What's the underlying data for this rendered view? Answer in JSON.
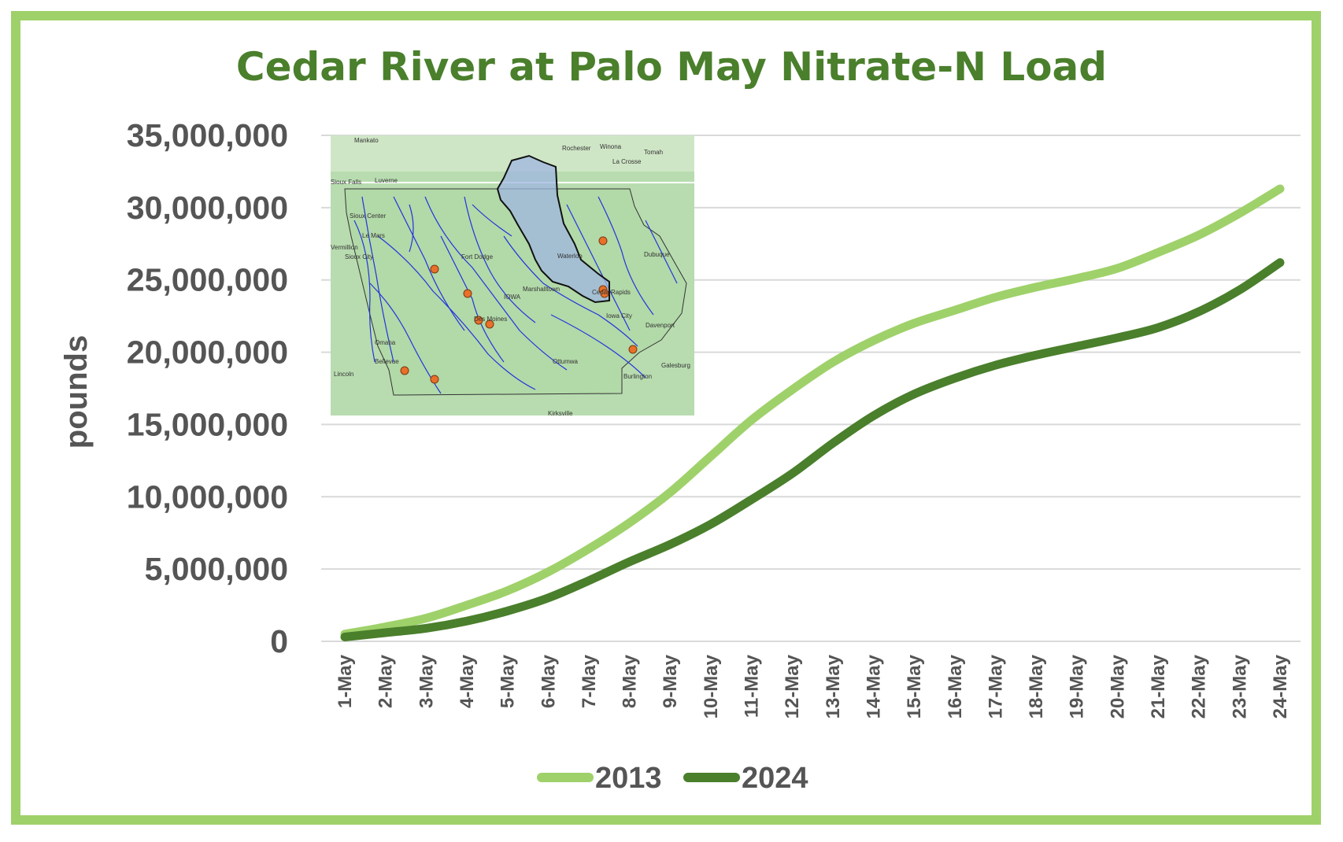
{
  "chart_data": {
    "type": "line",
    "title": "Cedar River at Palo May Nitrate-N Load",
    "xlabel": "",
    "ylabel": "pounds",
    "ylim": [
      0,
      35000000
    ],
    "yticks": [
      0,
      5000000,
      10000000,
      15000000,
      20000000,
      25000000,
      30000000,
      35000000
    ],
    "ytick_labels": [
      "0",
      "5,000,000",
      "10,000,000",
      "15,000,000",
      "20,000,000",
      "25,000,000",
      "30,000,000",
      "35,000,000"
    ],
    "grid": true,
    "legend_position": "bottom",
    "categories": [
      "1-May",
      "2-May",
      "3-May",
      "4-May",
      "5-May",
      "6-May",
      "7-May",
      "8-May",
      "9-May",
      "10-May",
      "11-May",
      "12-May",
      "13-May",
      "14-May",
      "15-May",
      "16-May",
      "17-May",
      "18-May",
      "19-May",
      "20-May",
      "21-May",
      "22-May",
      "23-May",
      "24-May"
    ],
    "series": [
      {
        "name": "2013",
        "color": "#9fd16a",
        "values": [
          500000,
          1000000,
          1600000,
          2500000,
          3500000,
          4800000,
          6400000,
          8200000,
          10300000,
          12800000,
          15300000,
          17400000,
          19300000,
          20800000,
          22000000,
          22900000,
          23800000,
          24500000,
          25100000,
          25800000,
          26900000,
          28100000,
          29600000,
          31300000
        ]
      },
      {
        "name": "2024",
        "color": "#4a7f2c",
        "values": [
          300000,
          600000,
          900000,
          1400000,
          2100000,
          3000000,
          4200000,
          5500000,
          6700000,
          8100000,
          9800000,
          11600000,
          13700000,
          15600000,
          17100000,
          18200000,
          19100000,
          19800000,
          20400000,
          21000000,
          21700000,
          22800000,
          24300000,
          26200000
        ]
      }
    ]
  },
  "inset_map": {
    "description_labels": [
      "Mankato",
      "Winona",
      "Rochester",
      "Tomah",
      "La Crosse",
      "Sioux Falls",
      "Luverne",
      "Sioux Center",
      "Le Mars",
      "Sioux City",
      "Fort Dodge",
      "IOWA",
      "Waterloo",
      "Marshalltown",
      "Cedar Rapids",
      "Dubuque",
      "Des Moines",
      "Iowa City",
      "Davenport",
      "Omaha",
      "Bellevue",
      "Lincoln",
      "Ottumwa",
      "Burlington",
      "Galesburg",
      "Vermillion",
      "Kirksville"
    ],
    "land_color": "#a8d5a2",
    "river_color": "#2233dd",
    "watershed_fill": "#9fb6e0",
    "site_color": "#e8702a"
  }
}
